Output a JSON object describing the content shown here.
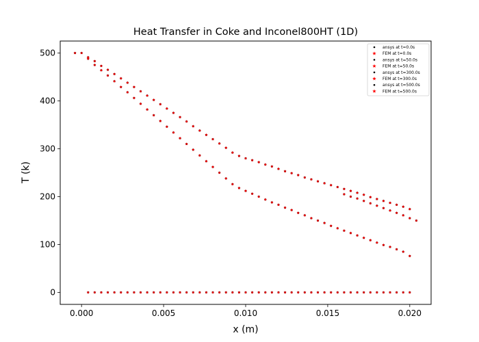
{
  "chart_data": {
    "type": "scatter",
    "title": "Heat Transfer in Coke and Inconel800HT (1D)",
    "xlabel": "x (m)",
    "ylabel": "T (k)",
    "xlim": [
      -0.0013,
      0.0213
    ],
    "ylim": [
      -25,
      525
    ],
    "xticks": [
      0.0,
      0.005,
      0.01,
      0.015,
      0.02
    ],
    "xtick_labels": [
      "0.000",
      "0.005",
      "0.010",
      "0.015",
      "0.020"
    ],
    "yticks": [
      0,
      100,
      200,
      300,
      400,
      500
    ],
    "ytick_labels": [
      "0",
      "100",
      "200",
      "300",
      "400",
      "500"
    ],
    "grid": false,
    "legend_position": "top-right",
    "colors": {
      "ansys": "#000000",
      "fem": "#ff0000"
    },
    "series": [
      {
        "name": "ansys at t=0.0s",
        "marker": "dot",
        "color": "#000000",
        "x": [
          0.0004,
          0.0008,
          0.0012,
          0.0016,
          0.002,
          0.0024,
          0.0028,
          0.0032,
          0.0036,
          0.004,
          0.0044,
          0.0048,
          0.0052,
          0.0056,
          0.006,
          0.0064,
          0.0068,
          0.0072,
          0.0076,
          0.008,
          0.0084,
          0.0088,
          0.0092,
          0.0096,
          0.01,
          0.0104,
          0.0108,
          0.0112,
          0.0116,
          0.012,
          0.0124,
          0.0128,
          0.0132,
          0.0136,
          0.014,
          0.0144,
          0.0148,
          0.0152,
          0.0156,
          0.016,
          0.0164,
          0.0168,
          0.0172,
          0.0176,
          0.018,
          0.0184,
          0.0188,
          0.0192,
          0.0196,
          0.02
        ],
        "y": [
          0,
          0,
          0,
          0,
          0,
          0,
          0,
          0,
          0,
          0,
          0,
          0,
          0,
          0,
          0,
          0,
          0,
          0,
          0,
          0,
          0,
          0,
          0,
          0,
          0,
          0,
          0,
          0,
          0,
          0,
          0,
          0,
          0,
          0,
          0,
          0,
          0,
          0,
          0,
          0,
          0,
          0,
          0,
          0,
          0,
          0,
          0,
          0,
          0,
          0
        ]
      },
      {
        "name": "FEM at t=0.0s",
        "marker": "star",
        "color": "#ff0000",
        "x": [
          0.0004,
          0.0008,
          0.0012,
          0.0016,
          0.002,
          0.0024,
          0.0028,
          0.0032,
          0.0036,
          0.004,
          0.0044,
          0.0048,
          0.0052,
          0.0056,
          0.006,
          0.0064,
          0.0068,
          0.0072,
          0.0076,
          0.008,
          0.0084,
          0.0088,
          0.0092,
          0.0096,
          0.01,
          0.0104,
          0.0108,
          0.0112,
          0.0116,
          0.012,
          0.0124,
          0.0128,
          0.0132,
          0.0136,
          0.014,
          0.0144,
          0.0148,
          0.0152,
          0.0156,
          0.016,
          0.0164,
          0.0168,
          0.0172,
          0.0176,
          0.018,
          0.0184,
          0.0188,
          0.0192,
          0.0196,
          0.02
        ],
        "y": [
          0,
          0,
          0,
          0,
          0,
          0,
          0,
          0,
          0,
          0,
          0,
          0,
          0,
          0,
          0,
          0,
          0,
          0,
          0,
          0,
          0,
          0,
          0,
          0,
          0,
          0,
          0,
          0,
          0,
          0,
          0,
          0,
          0,
          0,
          0,
          0,
          0,
          0,
          0,
          0,
          0,
          0,
          0,
          0,
          0,
          0,
          0,
          0,
          0,
          0
        ]
      },
      {
        "name": "ansys at t=50.0s",
        "marker": "dot",
        "color": "#000000",
        "x": [
          -0.0004,
          0,
          0.0004,
          0.0008,
          0.0012,
          0.0016,
          0.002,
          0.0024,
          0.0028,
          0.0032,
          0.0036,
          0.004,
          0.0044,
          0.0048,
          0.0052,
          0.0056,
          0.006,
          0.0064,
          0.0068,
          0.0072,
          0.0076,
          0.008,
          0.0084,
          0.0088,
          0.0092,
          0.0096,
          0.01,
          0.0104,
          0.0108,
          0.0112,
          0.0116,
          0.012,
          0.0124,
          0.0128,
          0.0132,
          0.0136,
          0.014,
          0.0144,
          0.0148,
          0.0152,
          0.0156,
          0.016,
          0.0164,
          0.0168,
          0.0172,
          0.0176,
          0.018,
          0.0184,
          0.0188,
          0.0192,
          0.0196,
          0.02
        ],
        "y": [
          500,
          500,
          488,
          475,
          464,
          453,
          441,
          429,
          418,
          406,
          394,
          382,
          370,
          358,
          346,
          334,
          322,
          310,
          298,
          286,
          274,
          262,
          250,
          238,
          226,
          218,
          212,
          206,
          200,
          194,
          188,
          183,
          177,
          172,
          166,
          161,
          155,
          150,
          145,
          139,
          134,
          129,
          124,
          119,
          114,
          109,
          104,
          99,
          95,
          90,
          85,
          76
        ]
      },
      {
        "name": "FEM at t=50.0s",
        "marker": "star",
        "color": "#ff0000",
        "x": [
          -0.0004,
          0,
          0.0004,
          0.0008,
          0.0012,
          0.0016,
          0.002,
          0.0024,
          0.0028,
          0.0032,
          0.0036,
          0.004,
          0.0044,
          0.0048,
          0.0052,
          0.0056,
          0.006,
          0.0064,
          0.0068,
          0.0072,
          0.0076,
          0.008,
          0.0084,
          0.0088,
          0.0092,
          0.0096,
          0.01,
          0.0104,
          0.0108,
          0.0112,
          0.0116,
          0.012,
          0.0124,
          0.0128,
          0.0132,
          0.0136,
          0.014,
          0.0144,
          0.0148,
          0.0152,
          0.0156,
          0.016,
          0.0164,
          0.0168,
          0.0172,
          0.0176,
          0.018,
          0.0184,
          0.0188,
          0.0192,
          0.0196,
          0.02
        ],
        "y": [
          500,
          500,
          488,
          475,
          464,
          453,
          441,
          429,
          418,
          406,
          394,
          382,
          370,
          358,
          346,
          334,
          322,
          310,
          298,
          286,
          274,
          262,
          250,
          238,
          226,
          218,
          212,
          206,
          200,
          194,
          188,
          183,
          177,
          172,
          166,
          161,
          155,
          150,
          145,
          139,
          134,
          129,
          124,
          119,
          114,
          109,
          104,
          99,
          95,
          90,
          85,
          76
        ]
      },
      {
        "name": "ansys at t=300.0s",
        "marker": "dot",
        "color": "#000000",
        "x": [
          0.0004,
          0.0008,
          0.0012,
          0.0016,
          0.002,
          0.0024,
          0.0028,
          0.0032,
          0.0036,
          0.004,
          0.0044,
          0.0048,
          0.0052,
          0.0056,
          0.006,
          0.0064,
          0.0068,
          0.0072,
          0.0076,
          0.008,
          0.0084,
          0.0088,
          0.0092,
          0.0096,
          0.01,
          0.0104,
          0.0108,
          0.0112,
          0.0116,
          0.012,
          0.0124,
          0.0128,
          0.0132,
          0.0136,
          0.014,
          0.0144,
          0.0148,
          0.0152,
          0.0156,
          0.016,
          0.0164,
          0.0168,
          0.0172,
          0.0176,
          0.018,
          0.0184,
          0.0188,
          0.0192,
          0.0196,
          0.02,
          0.0204
        ],
        "y": [
          491,
          483,
          473,
          465,
          456,
          447,
          438,
          429,
          420,
          411,
          402,
          393,
          384,
          375,
          366,
          357,
          347,
          338,
          329,
          320,
          311,
          302,
          292,
          285,
          280,
          276,
          272,
          267,
          263,
          258,
          253,
          249,
          245,
          240,
          236,
          232,
          228,
          224,
          220,
          216,
          212,
          208,
          204,
          199,
          195,
          191,
          187,
          183,
          179,
          174,
          150
        ]
      },
      {
        "name": "FEM at t=300.0s",
        "marker": "star",
        "color": "#ff0000",
        "x": [
          0.0004,
          0.0008,
          0.0012,
          0.0016,
          0.002,
          0.0024,
          0.0028,
          0.0032,
          0.0036,
          0.004,
          0.0044,
          0.0048,
          0.0052,
          0.0056,
          0.006,
          0.0064,
          0.0068,
          0.0072,
          0.0076,
          0.008,
          0.0084,
          0.0088,
          0.0092,
          0.0096,
          0.01,
          0.0104,
          0.0108,
          0.0112,
          0.0116,
          0.012,
          0.0124,
          0.0128,
          0.0132,
          0.0136,
          0.014,
          0.0144,
          0.0148,
          0.0152,
          0.0156,
          0.016,
          0.0164,
          0.0168,
          0.0172,
          0.0176,
          0.018,
          0.0184,
          0.0188,
          0.0192,
          0.0196,
          0.02,
          0.0204
        ],
        "y": [
          491,
          483,
          473,
          465,
          456,
          447,
          438,
          429,
          420,
          411,
          402,
          393,
          384,
          375,
          366,
          357,
          347,
          338,
          329,
          320,
          311,
          302,
          292,
          285,
          280,
          276,
          272,
          267,
          263,
          258,
          253,
          249,
          245,
          240,
          236,
          232,
          228,
          224,
          220,
          216,
          212,
          208,
          204,
          199,
          195,
          191,
          187,
          183,
          179,
          174,
          150
        ]
      },
      {
        "name": "ansys at t=500.0s",
        "marker": "dot",
        "color": "#000000",
        "x": [
          0.016,
          0.0164,
          0.0168,
          0.0172,
          0.0176,
          0.018,
          0.0184,
          0.0188,
          0.0192,
          0.0196,
          0.02
        ],
        "y": [
          205,
          200,
          196,
          191,
          186,
          181,
          176,
          171,
          166,
          161,
          155
        ]
      },
      {
        "name": "FEM at t=500.0s",
        "marker": "star",
        "color": "#ff0000",
        "x": [
          0.016,
          0.0164,
          0.0168,
          0.0172,
          0.0176,
          0.018,
          0.0184,
          0.0188,
          0.0192,
          0.0196,
          0.02
        ],
        "y": [
          205,
          200,
          196,
          191,
          186,
          181,
          176,
          171,
          166,
          161,
          155
        ]
      }
    ]
  }
}
